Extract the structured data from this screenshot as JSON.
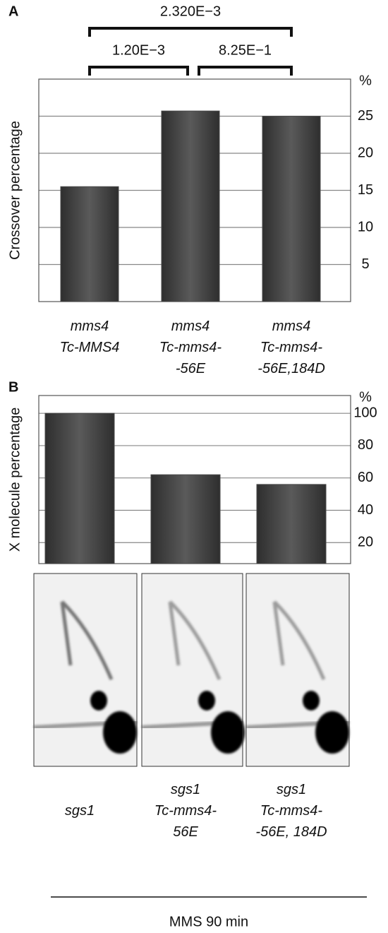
{
  "chart_data": [
    {
      "type": "bar",
      "panel_label": "A",
      "y_axis_label": "Crossover percentage",
      "y_unit": "%",
      "categories": [
        "mms4\nTc-MMS4",
        "mms4\nTc-mms4-\n-56E",
        "mms4\nTc-mms4-\n-56E,184D"
      ],
      "values": [
        15.5,
        25.7,
        25
      ],
      "color": "#4a4a4a",
      "ylim": [
        0,
        30
      ],
      "yticks": [
        5,
        10,
        15,
        20,
        25
      ],
      "grid": true,
      "annotations": [
        "2.320E−3",
        "1.20E−3",
        "8.25E−1"
      ]
    },
    {
      "type": "bar",
      "panel_label": "B",
      "y_axis_label": "X molecule percentage",
      "y_unit": "%",
      "values": [
        100,
        62,
        56
      ],
      "color": "#4a4a4a",
      "ylim": [
        7,
        111
      ],
      "yticks": [
        20,
        40,
        60,
        80,
        100
      ],
      "grid": true
    }
  ],
  "blots": {
    "labels": [
      "sgs1",
      "sgs1\nTc-mms4-\n56E",
      "sgs1\nTc-mms4-\n-56E, 184D"
    ],
    "condition": "MMS 90 min"
  }
}
